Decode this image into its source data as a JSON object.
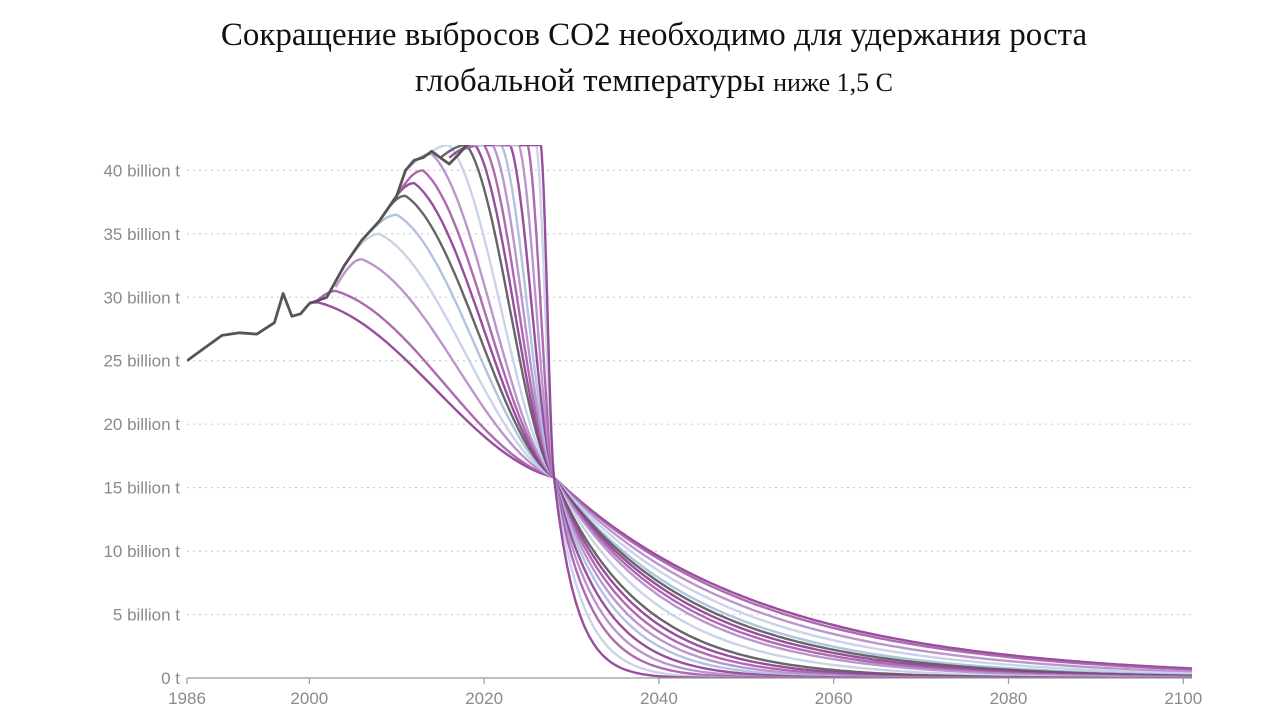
{
  "title": {
    "line1": "Сокращение выбросов CO2 необходимо для удержания роста",
    "line2_main": "глобальной температуры",
    "line2_small": "ниже 1,5 С"
  },
  "chart_data": {
    "type": "line",
    "xlim": [
      1986,
      2101
    ],
    "ylim": [
      0,
      42
    ],
    "x_ticks": [
      {
        "value": 1986,
        "label": "1986"
      },
      {
        "value": 2000,
        "label": "2000"
      },
      {
        "value": 2020,
        "label": "2020"
      },
      {
        "value": 2040,
        "label": "2040"
      },
      {
        "value": 2060,
        "label": "2060"
      },
      {
        "value": 2080,
        "label": "2080"
      },
      {
        "value": 2100,
        "label": "2100"
      }
    ],
    "y_ticks": [
      {
        "value": 0,
        "label": "0 t"
      },
      {
        "value": 5,
        "label": "5 billion t"
      },
      {
        "value": 10,
        "label": "10 billion t"
      },
      {
        "value": 15,
        "label": "15 billion t"
      },
      {
        "value": 20,
        "label": "20 billion t"
      },
      {
        "value": 25,
        "label": "25 billion t"
      },
      {
        "value": 30,
        "label": "30 billion t"
      },
      {
        "value": 35,
        "label": "35 billion t"
      },
      {
        "value": 40,
        "label": "40 billion t"
      }
    ],
    "grid": "horizontal-dotted",
    "historical": {
      "x": [
        1986,
        1988,
        1990,
        1992,
        1994,
        1996,
        1997,
        1998,
        1999,
        2000,
        2002,
        2004,
        2006,
        2008,
        2010,
        2011,
        2012,
        2013,
        2014,
        2015,
        2016,
        2017,
        2018,
        2019
      ],
      "y": [
        25.0,
        26.0,
        27.0,
        27.2,
        27.1,
        28.0,
        30.3,
        28.5,
        28.7,
        29.5,
        30.0,
        32.5,
        34.5,
        36.0,
        38.0,
        40.0,
        40.8,
        41.0,
        41.5,
        41.0,
        40.5,
        41.2,
        42.0,
        42.3
      ]
    },
    "scenarios": [
      {
        "start_year": 2000,
        "start_value": 29.6,
        "peak_year": 2001,
        "peak_value": 29.6,
        "final_2100": 0.8,
        "color": "#8e3a92"
      },
      {
        "start_year": 2001,
        "start_value": 29.8,
        "peak_year": 2003,
        "peak_value": 30.5,
        "final_2100": 0.7,
        "color": "#a45aa8"
      },
      {
        "start_year": 2003,
        "start_value": 30.8,
        "peak_year": 2006,
        "peak_value": 33.0,
        "final_2100": 0.5,
        "color": "#b48bc8"
      },
      {
        "start_year": 2005,
        "start_value": 33.5,
        "peak_year": 2008,
        "peak_value": 35.0,
        "final_2100": 0.3,
        "color": "#c4cfe6"
      },
      {
        "start_year": 2007,
        "start_value": 35.2,
        "peak_year": 2010,
        "peak_value": 36.5,
        "final_2100": 0.2,
        "color": "#a8bcdc"
      },
      {
        "start_year": 2008,
        "start_value": 36.0,
        "peak_year": 2011,
        "peak_value": 38.0,
        "final_2100": 0.15,
        "color": "#555555"
      },
      {
        "start_year": 2009,
        "start_value": 37.0,
        "peak_year": 2012,
        "peak_value": 39.0,
        "final_2100": 0.1,
        "color": "#8e3a92"
      },
      {
        "start_year": 2010,
        "start_value": 38.0,
        "peak_year": 2013,
        "peak_value": 40.0,
        "final_2100": 0.05,
        "color": "#a45aa8"
      },
      {
        "start_year": 2011,
        "start_value": 40.0,
        "peak_year": 2014,
        "peak_value": 41.3,
        "final_2100": 0.0,
        "color": "#b48bc8"
      },
      {
        "start_year": 2013,
        "start_value": 41.0,
        "peak_year": 2016,
        "peak_value": 42.0,
        "final_2100": 0.0,
        "color": "#c4cfe6"
      },
      {
        "start_year": 2015,
        "start_value": 41.0,
        "peak_year": 2018,
        "peak_value": 42.0,
        "final_2100": 0.0,
        "color": "#555555"
      },
      {
        "start_year": 2016,
        "start_value": 41.0,
        "peak_year": 2019,
        "peak_value": 42.0,
        "final_2100": 0.0,
        "color": "#8e3a92"
      },
      {
        "start_year": 2017,
        "start_value": 41.5,
        "peak_year": 2020,
        "peak_value": 42.0,
        "final_2100": 0.0,
        "color": "#a45aa8"
      },
      {
        "start_year": 2018,
        "start_value": 42.0,
        "peak_year": 2021,
        "peak_value": 42.0,
        "final_2100": 0.0,
        "color": "#b48bc8"
      },
      {
        "start_year": 2019,
        "start_value": 42.0,
        "peak_year": 2022,
        "peak_value": 42.0,
        "final_2100": 0.0,
        "color": "#a8bcdc"
      },
      {
        "start_year": 2020,
        "start_value": 42.0,
        "peak_year": 2023,
        "peak_value": 42.0,
        "final_2100": 0.0,
        "color": "#8e3a92"
      },
      {
        "start_year": 2021,
        "start_value": 42.0,
        "peak_year": 2024,
        "peak_value": 42.0,
        "final_2100": 0.0,
        "color": "#b48bc8"
      },
      {
        "start_year": 2022,
        "start_value": 42.0,
        "peak_year": 2025,
        "peak_value": 42.0,
        "final_2100": 0.0,
        "color": "#a45aa8"
      },
      {
        "start_year": 2023,
        "start_value": 42.0,
        "peak_year": 2026,
        "peak_value": 42.0,
        "final_2100": 0.0,
        "color": "#c4cfe6"
      },
      {
        "start_year": 2024,
        "start_value": 42.0,
        "peak_year": 2026.5,
        "peak_value": 42.0,
        "final_2100": 0.0,
        "color": "#8e3a92"
      }
    ],
    "convergence_point": {
      "year": 2028,
      "value": 15.8
    },
    "colors": {
      "historical": "#555555",
      "purple": "#8e3a92",
      "light_purple": "#b48bc8",
      "light_blue": "#a8bcdc",
      "grid": "#cccccc",
      "axis": "#9a9a9a"
    }
  }
}
